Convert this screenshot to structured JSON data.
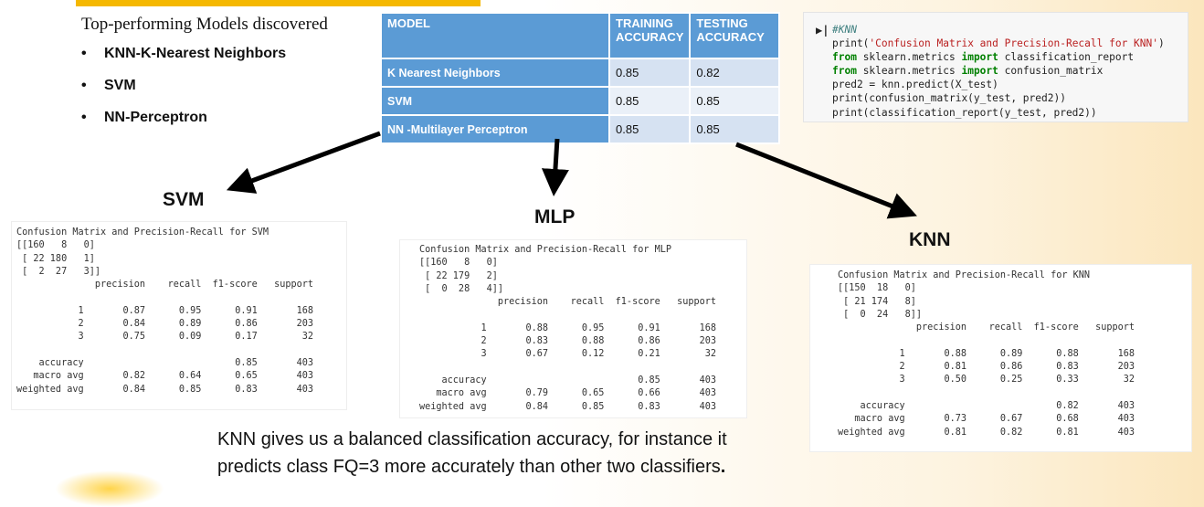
{
  "intro": {
    "title": "Top-performing Models discovered",
    "items": [
      "KNN-K-Nearest Neighbors",
      "SVM",
      "NN-Perceptron"
    ],
    "bullet": "•"
  },
  "summary_table": {
    "headers": [
      "MODEL",
      "TRAINING ACCURACY",
      "TESTING ACCURACY"
    ],
    "rows": [
      {
        "model": "K Nearest Neighbors",
        "training": "0.85",
        "testing": "0.82"
      },
      {
        "model": "SVM",
        "training": "0.85",
        "testing": "0.85"
      },
      {
        "model": "NN -Multilayer Perceptron",
        "training": "0.85",
        "testing": "0.85"
      }
    ]
  },
  "code_cell": {
    "prompt": "▶|",
    "comment": "#KNN",
    "line1_fn": "print(",
    "line1_str": "'Confusion Matrix and Precision-Recall for KNN'",
    "line1_end": ")",
    "line2_kw1": "from",
    "line2_mod": " sklearn.metrics ",
    "line2_kw2": "import",
    "line2_name": " classification_report",
    "line3_kw1": "from",
    "line3_mod": " sklearn.metrics ",
    "line3_kw2": "import",
    "line3_name": " confusion_matrix",
    "line4": "pred2 = knn.predict(X_test)",
    "line5": "print(confusion_matrix(y_test, pred2))",
    "line6": "print(classification_report(y_test, pred2))"
  },
  "panels": {
    "svm_title": "SVM",
    "mlp_title": "MLP",
    "knn_title": "KNN"
  },
  "reports": {
    "svm": "Confusion Matrix and Precision-Recall for SVM\n[[160   8   0]\n [ 22 180   1]\n [  2  27   3]]\n              precision    recall  f1-score   support\n\n           1       0.87      0.95      0.91       168\n           2       0.84      0.89      0.86       203\n           3       0.75      0.09      0.17        32\n\n    accuracy                           0.85       403\n   macro avg       0.82      0.64      0.65       403\nweighted avg       0.84      0.85      0.83       403",
    "mlp": "Confusion Matrix and Precision-Recall for MLP\n[[160   8   0]\n [ 22 179   2]\n [  0  28   4]]\n              precision    recall  f1-score   support\n\n           1       0.88      0.95      0.91       168\n           2       0.83      0.88      0.86       203\n           3       0.67      0.12      0.21        32\n\n    accuracy                           0.85       403\n   macro avg       0.79      0.65      0.66       403\nweighted avg       0.84      0.85      0.83       403",
    "knn": "Confusion Matrix and Precision-Recall for KNN\n[[150  18   0]\n [ 21 174   8]\n [  0  24   8]]\n              precision    recall  f1-score   support\n\n           1       0.88      0.89      0.88       168\n           2       0.81      0.86      0.83       203\n           3       0.50      0.25      0.33        32\n\n    accuracy                           0.82       403\n   macro avg       0.73      0.67      0.68       403\nweighted avg       0.81      0.82      0.81       403"
  },
  "conclusion": {
    "line1": "KNN gives us a balanced classification accuracy, for instance it",
    "line2": "predicts class FQ=3 more accurately than other two classifiers",
    "period": "."
  },
  "colors": {
    "accent_bar": "#f5b800",
    "table_header": "#5b9bd5",
    "table_cell_alt": "#d6e2f2",
    "table_cell_plain": "#eaf0f8"
  }
}
